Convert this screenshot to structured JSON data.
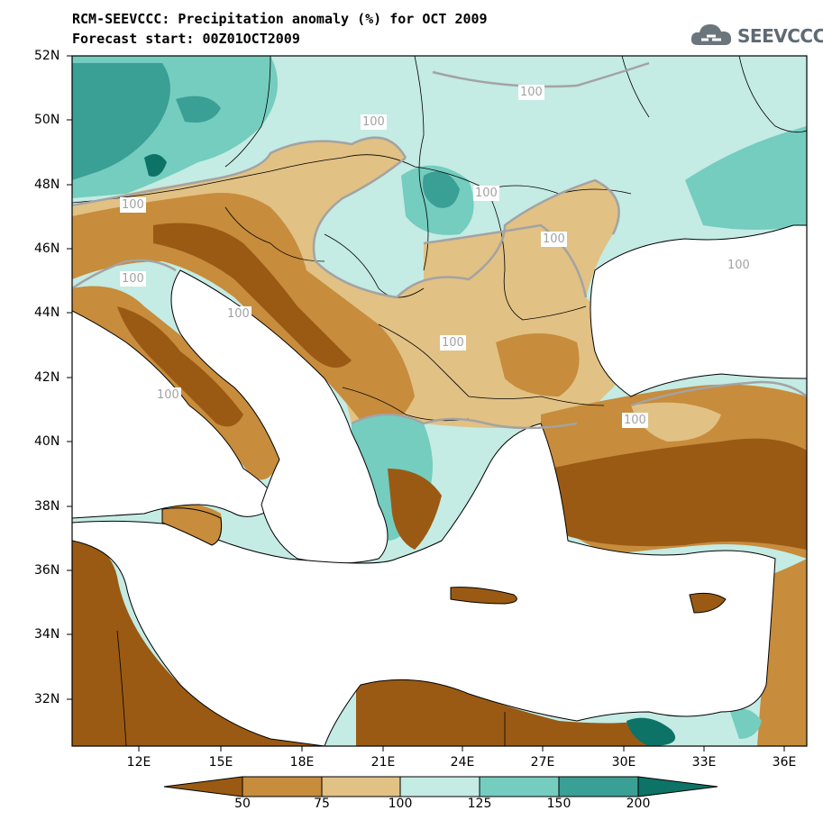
{
  "title": {
    "line1": "RCM-SEEVCCC: Precipitation anomaly (%) for OCT 2009",
    "line2": "Forecast start: 00Z01OCT2009"
  },
  "logo": {
    "text": "SEEVCCC",
    "icon": "cloud-icon"
  },
  "map": {
    "lat_labels": [
      "52N",
      "50N",
      "48N",
      "46N",
      "44N",
      "42N",
      "40N",
      "38N",
      "36N",
      "34N",
      "32N"
    ],
    "lon_labels": [
      "12E",
      "15E",
      "18E",
      "21E",
      "24E",
      "27E",
      "30E",
      "33E",
      "36E"
    ],
    "contour_label": "100"
  },
  "colorbar": {
    "labels": [
      "50",
      "75",
      "100",
      "125",
      "150",
      "200"
    ],
    "colors": [
      "#9a5a14",
      "#c78c3c",
      "#e1c184",
      "#c4ebe4",
      "#74cdbf",
      "#3a9f94",
      "#0d7367"
    ]
  },
  "palette": {
    "sea": "#ffffff",
    "very_dry": "#9a5a14",
    "dry": "#c78c3c",
    "slightly_dry": "#e1c184",
    "slightly_wet": "#c4ebe4",
    "wet": "#74cdbf",
    "very_wet": "#3a9f94",
    "extreme_wet": "#0d7367"
  }
}
